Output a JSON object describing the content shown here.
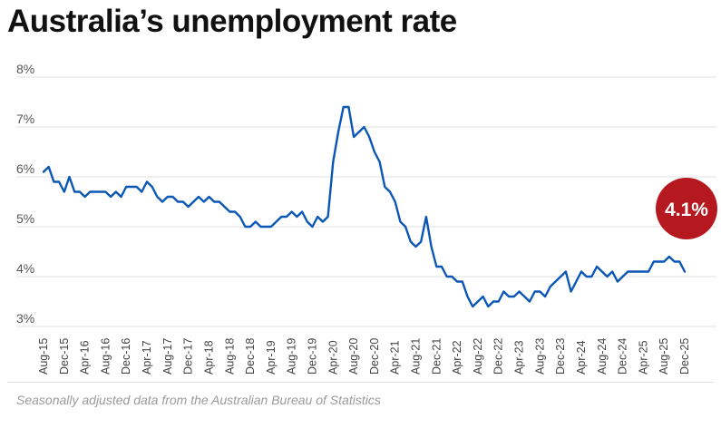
{
  "chart_data": {
    "type": "line",
    "title": "Australia’s unemployment rate",
    "source": "Seasonally adjusted data from the Australian Bureau of Statistics",
    "xlabel": "",
    "ylabel": "",
    "ylim": [
      3,
      8
    ],
    "yticks": [
      8,
      7,
      6,
      5,
      4,
      3
    ],
    "ytick_labels": [
      "8%",
      "7%",
      "6%",
      "5%",
      "4%",
      "3%"
    ],
    "xtick_labels": [
      "Aug-15",
      "Dec-15",
      "Apr-16",
      "Aug-16",
      "Dec-16",
      "Apr-17",
      "Aug-17",
      "Dec-17",
      "Apr-18",
      "Aug-18",
      "Dec-18",
      "Apr-19",
      "Aug-19",
      "Dec-19",
      "Apr-20",
      "Aug-20",
      "Dec-20",
      "Apr-21",
      "Aug-21",
      "Dec-21",
      "Apr-22",
      "Aug-22",
      "Dec-22",
      "Apr-23",
      "Aug-23",
      "Dec-23",
      "Apr-24",
      "Aug-24",
      "Dec-24",
      "Apr-25",
      "Aug-25",
      "Dec-25"
    ],
    "xtick_every_months": 4,
    "grid": true,
    "series": [
      {
        "name": "Unemployment rate (%)",
        "color": "#0b57b8",
        "start": "Aug-15",
        "end": "Dec-25",
        "values": [
          6.1,
          6.2,
          5.9,
          5.9,
          5.7,
          6.0,
          5.7,
          5.7,
          5.6,
          5.7,
          5.7,
          5.7,
          5.7,
          5.6,
          5.7,
          5.6,
          5.8,
          5.8,
          5.8,
          5.7,
          5.9,
          5.8,
          5.6,
          5.5,
          5.6,
          5.6,
          5.5,
          5.5,
          5.4,
          5.5,
          5.6,
          5.5,
          5.6,
          5.5,
          5.5,
          5.4,
          5.3,
          5.3,
          5.2,
          5.0,
          5.0,
          5.1,
          5.0,
          5.0,
          5.0,
          5.1,
          5.2,
          5.2,
          5.3,
          5.2,
          5.3,
          5.1,
          5.0,
          5.2,
          5.1,
          5.2,
          6.3,
          6.9,
          7.4,
          7.4,
          6.8,
          6.9,
          7.0,
          6.8,
          6.5,
          6.3,
          5.8,
          5.7,
          5.5,
          5.1,
          5.0,
          4.7,
          4.6,
          4.7,
          5.2,
          4.6,
          4.2,
          4.2,
          4.0,
          4.0,
          3.9,
          3.9,
          3.6,
          3.4,
          3.5,
          3.6,
          3.4,
          3.5,
          3.5,
          3.7,
          3.6,
          3.6,
          3.7,
          3.6,
          3.5,
          3.7,
          3.7,
          3.6,
          3.8,
          3.9,
          4.0,
          4.1,
          3.7,
          3.9,
          4.1,
          4.0,
          4.0,
          4.2,
          4.1,
          4.0,
          4.1,
          3.9,
          4.0,
          4.1,
          4.1,
          4.1,
          4.1,
          4.1,
          4.3,
          4.3,
          4.3,
          4.4,
          4.3,
          4.3,
          4.1
        ]
      }
    ],
    "annotation": {
      "label": "4.1%",
      "color": "#b5191f"
    }
  }
}
